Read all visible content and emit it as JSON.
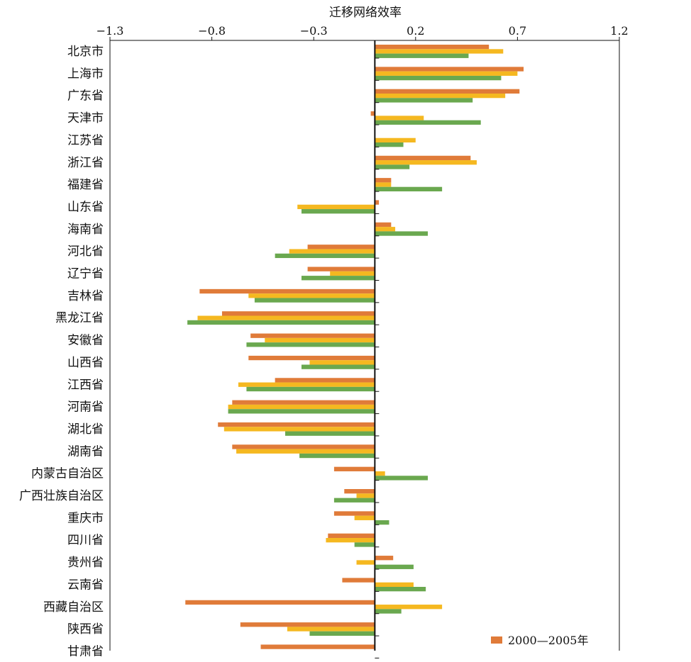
{
  "chart_data": {
    "type": "bar",
    "orientation": "horizontal",
    "title": "迁移网络效率",
    "xlim": [
      -1.3,
      1.2
    ],
    "xticks": [
      "-1.3",
      "-0.8",
      "-0.3",
      "0.2",
      "0.7",
      "1.2"
    ],
    "categories": [
      "北京市",
      "上海市",
      "广东省",
      "天津市",
      "江苏省",
      "浙江省",
      "福建省",
      "山东省",
      "海南省",
      "河北省",
      "辽宁省",
      "吉林省",
      "黑龙江省",
      "安徽省",
      "山西省",
      "江西省",
      "河南省",
      "湖北省",
      "湖南省",
      "内蒙古自治区",
      "广西壮族自治区",
      "重庆市",
      "四川省",
      "贵州省",
      "云南省",
      "西藏自治区",
      "陕西省",
      "甘肃省"
    ],
    "series": [
      {
        "name": "2000—2005年",
        "color": "#E07B39",
        "values": [
          0.56,
          0.73,
          0.71,
          -0.02,
          0.0,
          0.47,
          0.08,
          0.02,
          0.08,
          -0.33,
          -0.33,
          -0.86,
          -0.75,
          -0.61,
          -0.62,
          -0.49,
          -0.7,
          -0.77,
          -0.7,
          -0.2,
          -0.15,
          -0.2,
          -0.23,
          0.09,
          -0.16,
          -0.93,
          -0.66,
          -0.56
        ]
      },
      {
        "color": "#F5B820",
        "values": [
          0.63,
          0.7,
          0.64,
          0.24,
          0.2,
          0.5,
          0.08,
          -0.38,
          0.1,
          -0.42,
          -0.22,
          -0.62,
          -0.87,
          -0.54,
          -0.32,
          -0.67,
          -0.72,
          -0.74,
          -0.68,
          0.05,
          -0.09,
          -0.1,
          -0.24,
          -0.09,
          0.19,
          0.33,
          -0.43,
          null
        ]
      },
      {
        "color": "#6AA84F",
        "values": [
          0.46,
          0.62,
          0.48,
          0.52,
          0.14,
          0.17,
          0.33,
          -0.36,
          0.26,
          -0.49,
          -0.36,
          -0.59,
          -0.92,
          -0.63,
          -0.36,
          -0.63,
          -0.72,
          -0.44,
          -0.37,
          0.26,
          -0.2,
          0.07,
          -0.1,
          0.19,
          0.25,
          0.13,
          -0.32,
          null
        ]
      }
    ],
    "legend": {
      "position": "bottom-right",
      "entries": [
        "2000—2005年"
      ]
    }
  }
}
